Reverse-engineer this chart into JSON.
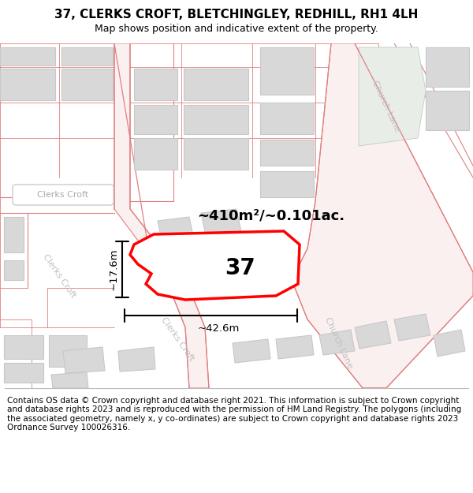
{
  "title": "37, CLERKS CROFT, BLETCHINGLEY, REDHILL, RH1 4LH",
  "subtitle": "Map shows position and indicative extent of the property.",
  "footer": "Contains OS data © Crown copyright and database right 2021. This information is subject to Crown copyright and database rights 2023 and is reproduced with the permission of HM Land Registry. The polygons (including the associated geometry, namely x, y co-ordinates) are subject to Crown copyright and database rights 2023 Ordnance Survey 100026316.",
  "area_label": "~410m²/~0.101ac.",
  "number_label": "37",
  "width_label": "~42.6m",
  "height_label": "~17.6m",
  "bg_color": "#ffffff",
  "map_bg": "#ffffff",
  "road_color": "#f5c0c0",
  "road_stroke": "#e08080",
  "highlight_color": "#ff0000",
  "building_fill": "#d8d8d8",
  "building_edge": "#c8c8c8",
  "street_label_color": "#c0c0c0",
  "green_fill": "#e8f0e8",
  "title_fontsize": 11,
  "subtitle_fontsize": 9,
  "footer_fontsize": 7.5,
  "figsize": [
    6.0,
    6.25
  ],
  "dpi": 100
}
